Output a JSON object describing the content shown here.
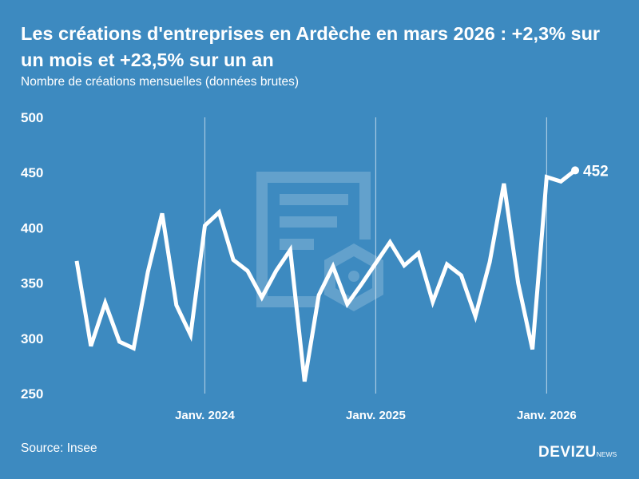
{
  "title": "Les créations d'entreprises en Ardèche en mars 2026 : +2,3% sur un mois et +23,5% sur un an",
  "subtitle": "Nombre de créations mensuelles (données brutes)",
  "source": "Source: Insee",
  "logo": {
    "main": "DEVIZU",
    "suffix": "NEWS"
  },
  "colors": {
    "background": "#3d8ac0",
    "line": "#ffffff"
  },
  "chart_data": {
    "type": "line",
    "title": "Les créations d'entreprises en Ardèche en mars 2026 : +2,3% sur un mois et +23,5% sur un an",
    "ylabel": "",
    "xlabel": "",
    "ylim": [
      250,
      500
    ],
    "yticks": [
      "250",
      "300",
      "350",
      "400",
      "450",
      "500"
    ],
    "xticks": [
      {
        "label": "Janv. 2024",
        "month": "2024-01"
      },
      {
        "label": "Janv. 2025",
        "month": "2025-01"
      },
      {
        "label": "Janv. 2026",
        "month": "2026-01"
      }
    ],
    "x": [
      "2023-04",
      "2023-05",
      "2023-06",
      "2023-07",
      "2023-08",
      "2023-09",
      "2023-10",
      "2023-11",
      "2023-12",
      "2024-01",
      "2024-02",
      "2024-03",
      "2024-04",
      "2024-05",
      "2024-06",
      "2024-07",
      "2024-08",
      "2024-09",
      "2024-10",
      "2024-11",
      "2024-12",
      "2025-01",
      "2025-02",
      "2025-03",
      "2025-04",
      "2025-05",
      "2025-06",
      "2025-07",
      "2025-08",
      "2025-09",
      "2025-10",
      "2025-11",
      "2025-12",
      "2026-01",
      "2026-02",
      "2026-03"
    ],
    "values": [
      370,
      293,
      332,
      297,
      291,
      360,
      413,
      330,
      303,
      402,
      414,
      371,
      361,
      337,
      361,
      380,
      261,
      339,
      365,
      331,
      349,
      368,
      387,
      366,
      377,
      333,
      367,
      357,
      320,
      369,
      440,
      350,
      290,
      446,
      442,
      452
    ],
    "last_label": "452",
    "grid": false
  }
}
